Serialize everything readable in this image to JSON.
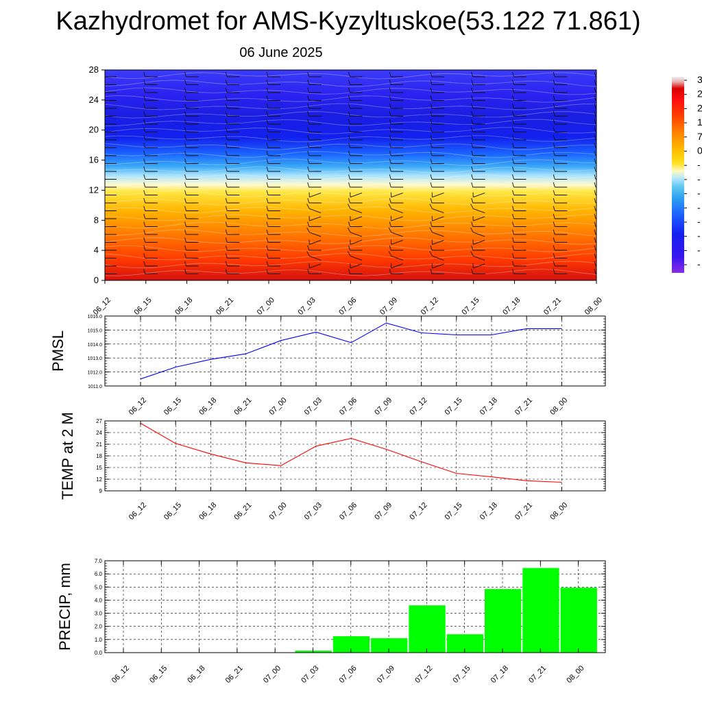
{
  "header": {
    "title": "Kazhydromet for AMS-Kyzyltuskoe(53.122 71.861)",
    "date": "06 June 2025"
  },
  "time_labels": [
    "06_12",
    "06_15",
    "06_18",
    "06_21",
    "07_00",
    "07_03",
    "07_06",
    "07_09",
    "07_12",
    "07_15",
    "07_18",
    "07_21",
    "08_00"
  ],
  "chart_data": [
    {
      "type": "heatmap",
      "y_ticks": [
        0,
        4,
        8,
        12,
        16,
        20,
        24,
        28
      ],
      "ylim": [
        0,
        28
      ],
      "colorbar_labels": [
        "3",
        "2",
        "2",
        "1",
        "7",
        "0",
        "-",
        "-",
        "-",
        "-",
        "-",
        "-",
        "-",
        "-"
      ],
      "colorbar_colors": [
        "#f0f0f0",
        "#e8b0b0",
        "#d80000",
        "#ff1010",
        "#ff4000",
        "#ff7000",
        "#ff9a00",
        "#ffc000",
        "#ffe020",
        "#fffac0",
        "#b0e6ff",
        "#60c8f0",
        "#2aa0f0",
        "#1f62ff",
        "#1420f0",
        "#3a16f0",
        "#8a2be2"
      ],
      "wind_barbs": "shown",
      "contour_lines": "shown"
    },
    {
      "type": "line",
      "ylabel": "PMSL",
      "yticks": [
        "1011.0",
        "1012.0",
        "1013.0",
        "1014.0",
        "1015.0",
        "1016.0"
      ],
      "ylim": [
        1011.0,
        1016.0
      ],
      "grid": true,
      "series": [
        {
          "color": "#0000ff",
          "values": [
            1011.5,
            1012.35,
            1012.9,
            1013.3,
            1014.25,
            1014.85,
            1014.1,
            1015.5,
            1014.8,
            1014.65,
            1014.65,
            1015.1,
            1015.1
          ]
        }
      ]
    },
    {
      "type": "line",
      "ylabel": "TEMP at 2 M",
      "yticks": [
        "9",
        "12",
        "15",
        "18",
        "21",
        "24",
        "27"
      ],
      "ylim": [
        9,
        27
      ],
      "grid": true,
      "series": [
        {
          "color": "#ff0000",
          "values": [
            26.4,
            21.2,
            18.5,
            16.2,
            15.5,
            20.5,
            22.5,
            19.7,
            16.5,
            13.5,
            12.6,
            11.6,
            11.2
          ]
        }
      ]
    },
    {
      "type": "bar",
      "ylabel": "PRECIP, mm",
      "yticks": [
        "0.0",
        "1.0",
        "2.0",
        "3.0",
        "4.0",
        "5.0",
        "6.0",
        "7.0"
      ],
      "ylim": [
        0,
        7
      ],
      "grid": true,
      "bar_color": "#00ff00",
      "values": [
        0,
        0,
        0,
        0,
        0,
        0.15,
        1.25,
        1.1,
        3.6,
        1.4,
        4.85,
        6.45,
        4.95
      ]
    }
  ]
}
